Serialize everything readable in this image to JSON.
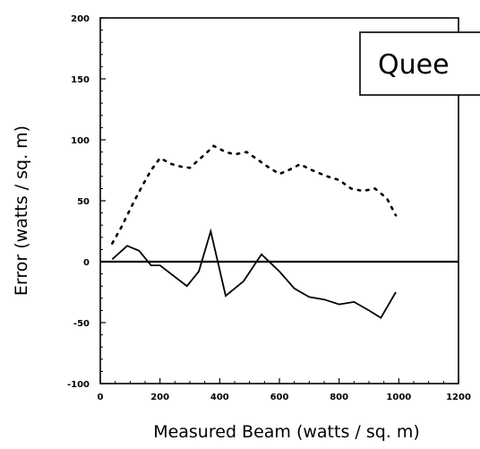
{
  "chart_data": {
    "type": "line",
    "xlabel": "Measured Beam (watts / sq. m)",
    "ylabel": "Error (watts / sq. m)",
    "xlim": [
      0,
      1200
    ],
    "ylim": [
      -100,
      200
    ],
    "x_ticks": [
      "0",
      "200",
      "400",
      "600",
      "800",
      "1000",
      "1200"
    ],
    "y_ticks": [
      "-100",
      "-50",
      "0",
      "50",
      "100",
      "150",
      "200"
    ],
    "annotation": "Quee",
    "zero_line": true,
    "series": [
      {
        "style": "solid",
        "x": [
          40,
          90,
          130,
          170,
          200,
          290,
          330,
          370,
          420,
          480,
          540,
          600,
          650,
          700,
          750,
          800,
          850,
          900,
          940,
          990
        ],
        "y": [
          2,
          13,
          9,
          -3,
          -3,
          -20,
          -8,
          25,
          -28,
          -16,
          6,
          -8,
          -22,
          -29,
          -31,
          -35,
          -33,
          -40,
          -46,
          -25
        ]
      },
      {
        "style": "dotted",
        "x": [
          40,
          70,
          110,
          140,
          170,
          200,
          240,
          270,
          300,
          350,
          380,
          420,
          450,
          490,
          520,
          560,
          600,
          630,
          670,
          700,
          740,
          760,
          800,
          840,
          880,
          920,
          960,
          990
        ],
        "y": [
          15,
          28,
          48,
          62,
          75,
          85,
          80,
          78,
          77,
          88,
          95,
          90,
          88,
          90,
          85,
          78,
          72,
          75,
          80,
          76,
          72,
          70,
          67,
          60,
          58,
          60,
          52,
          38
        ]
      }
    ]
  }
}
